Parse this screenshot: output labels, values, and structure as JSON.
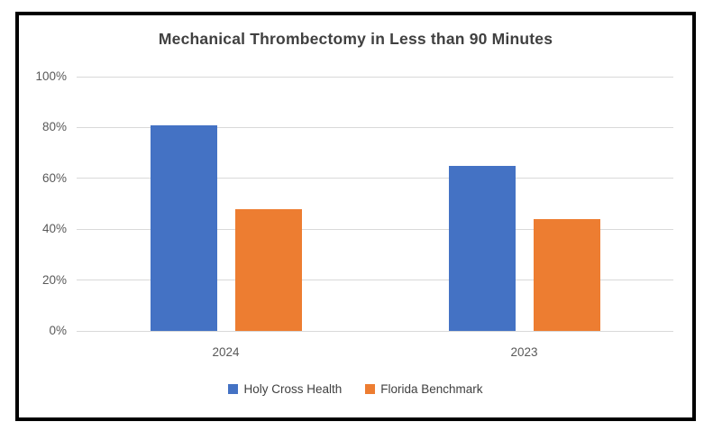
{
  "chart_data": {
    "type": "bar",
    "title": "Mechanical Thrombectomy in Less than 90 Minutes",
    "categories": [
      "2024",
      "2023"
    ],
    "series": [
      {
        "name": "Holy Cross Health",
        "color": "#4472C4",
        "values": [
          81,
          65
        ]
      },
      {
        "name": "Florida Benchmark",
        "color": "#ED7D31",
        "values": [
          48,
          44
        ]
      }
    ],
    "ylim": [
      0,
      100
    ],
    "y_tick_step": 20,
    "y_tick_labels": [
      "0%",
      "20%",
      "40%",
      "60%",
      "80%",
      "100%"
    ],
    "grid": true,
    "legend_position": "bottom"
  },
  "colors": {
    "frame_border": "#000000",
    "background": "#FFFFFF",
    "title_text": "#404040",
    "axis_text": "#595959",
    "legend_text": "#404040",
    "gridline": "#D9D9D9"
  }
}
